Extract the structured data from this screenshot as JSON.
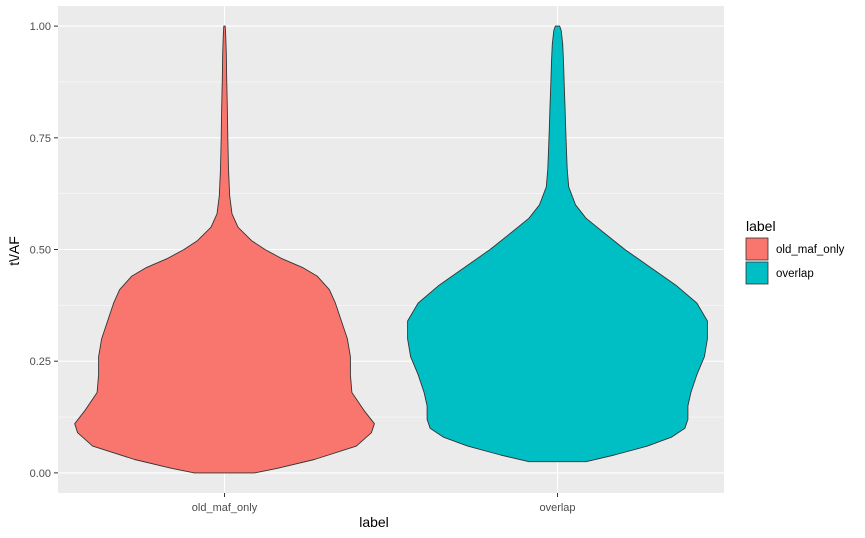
{
  "chart_data": {
    "type": "violin",
    "xlabel": "label",
    "ylabel": "t\\/AF",
    "categories": [
      "old_maf_only",
      "overlap"
    ],
    "ylim": [
      -0.045,
      1.045
    ],
    "yticks": [
      0.0,
      0.25,
      0.5,
      0.75,
      1.0
    ],
    "ytick_labels": [
      "0.00",
      "0.25",
      "0.50",
      "0.75",
      "1.00"
    ],
    "grid": true,
    "legend": {
      "title": "label",
      "placement": "right",
      "entries": [
        "old_maf_only",
        "overlap"
      ]
    },
    "colors": {
      "old_maf_only": "#F8766D",
      "overlap": "#00BFC4",
      "panel_background": "#EBEBEB",
      "grid": "#FFFFFF",
      "outline": "#333333"
    },
    "series": [
      {
        "category": "old_maf_only",
        "ymin": 0.0,
        "ymax": 1.0,
        "density_profile": [
          [
            0.0,
            0.2
          ],
          [
            0.01,
            0.35
          ],
          [
            0.03,
            0.6
          ],
          [
            0.06,
            0.88
          ],
          [
            0.09,
            0.98
          ],
          [
            0.11,
            1.0
          ],
          [
            0.14,
            0.93
          ],
          [
            0.18,
            0.85
          ],
          [
            0.22,
            0.84
          ],
          [
            0.26,
            0.84
          ],
          [
            0.3,
            0.82
          ],
          [
            0.34,
            0.78
          ],
          [
            0.38,
            0.74
          ],
          [
            0.41,
            0.7
          ],
          [
            0.44,
            0.62
          ],
          [
            0.46,
            0.52
          ],
          [
            0.48,
            0.38
          ],
          [
            0.5,
            0.27
          ],
          [
            0.52,
            0.18
          ],
          [
            0.55,
            0.09
          ],
          [
            0.58,
            0.05
          ],
          [
            0.62,
            0.035
          ],
          [
            0.68,
            0.027
          ],
          [
            0.75,
            0.022
          ],
          [
            0.82,
            0.019
          ],
          [
            0.88,
            0.015
          ],
          [
            0.94,
            0.012
          ],
          [
            0.98,
            0.008
          ],
          [
            1.0,
            0.005
          ]
        ]
      },
      {
        "category": "overlap",
        "ymin": 0.025,
        "ymax": 1.0,
        "density_profile": [
          [
            0.025,
            0.19
          ],
          [
            0.04,
            0.38
          ],
          [
            0.06,
            0.6
          ],
          [
            0.08,
            0.76
          ],
          [
            0.1,
            0.85
          ],
          [
            0.12,
            0.87
          ],
          [
            0.15,
            0.87
          ],
          [
            0.18,
            0.89
          ],
          [
            0.22,
            0.93
          ],
          [
            0.26,
            0.98
          ],
          [
            0.3,
            1.0
          ],
          [
            0.34,
            1.0
          ],
          [
            0.38,
            0.93
          ],
          [
            0.42,
            0.79
          ],
          [
            0.46,
            0.62
          ],
          [
            0.5,
            0.45
          ],
          [
            0.54,
            0.3
          ],
          [
            0.57,
            0.19
          ],
          [
            0.6,
            0.12
          ],
          [
            0.64,
            0.075
          ],
          [
            0.68,
            0.065
          ],
          [
            0.72,
            0.06
          ],
          [
            0.77,
            0.055
          ],
          [
            0.82,
            0.05
          ],
          [
            0.87,
            0.045
          ],
          [
            0.92,
            0.04
          ],
          [
            0.96,
            0.035
          ],
          [
            0.99,
            0.025
          ],
          [
            1.0,
            0.015
          ]
        ]
      }
    ]
  }
}
